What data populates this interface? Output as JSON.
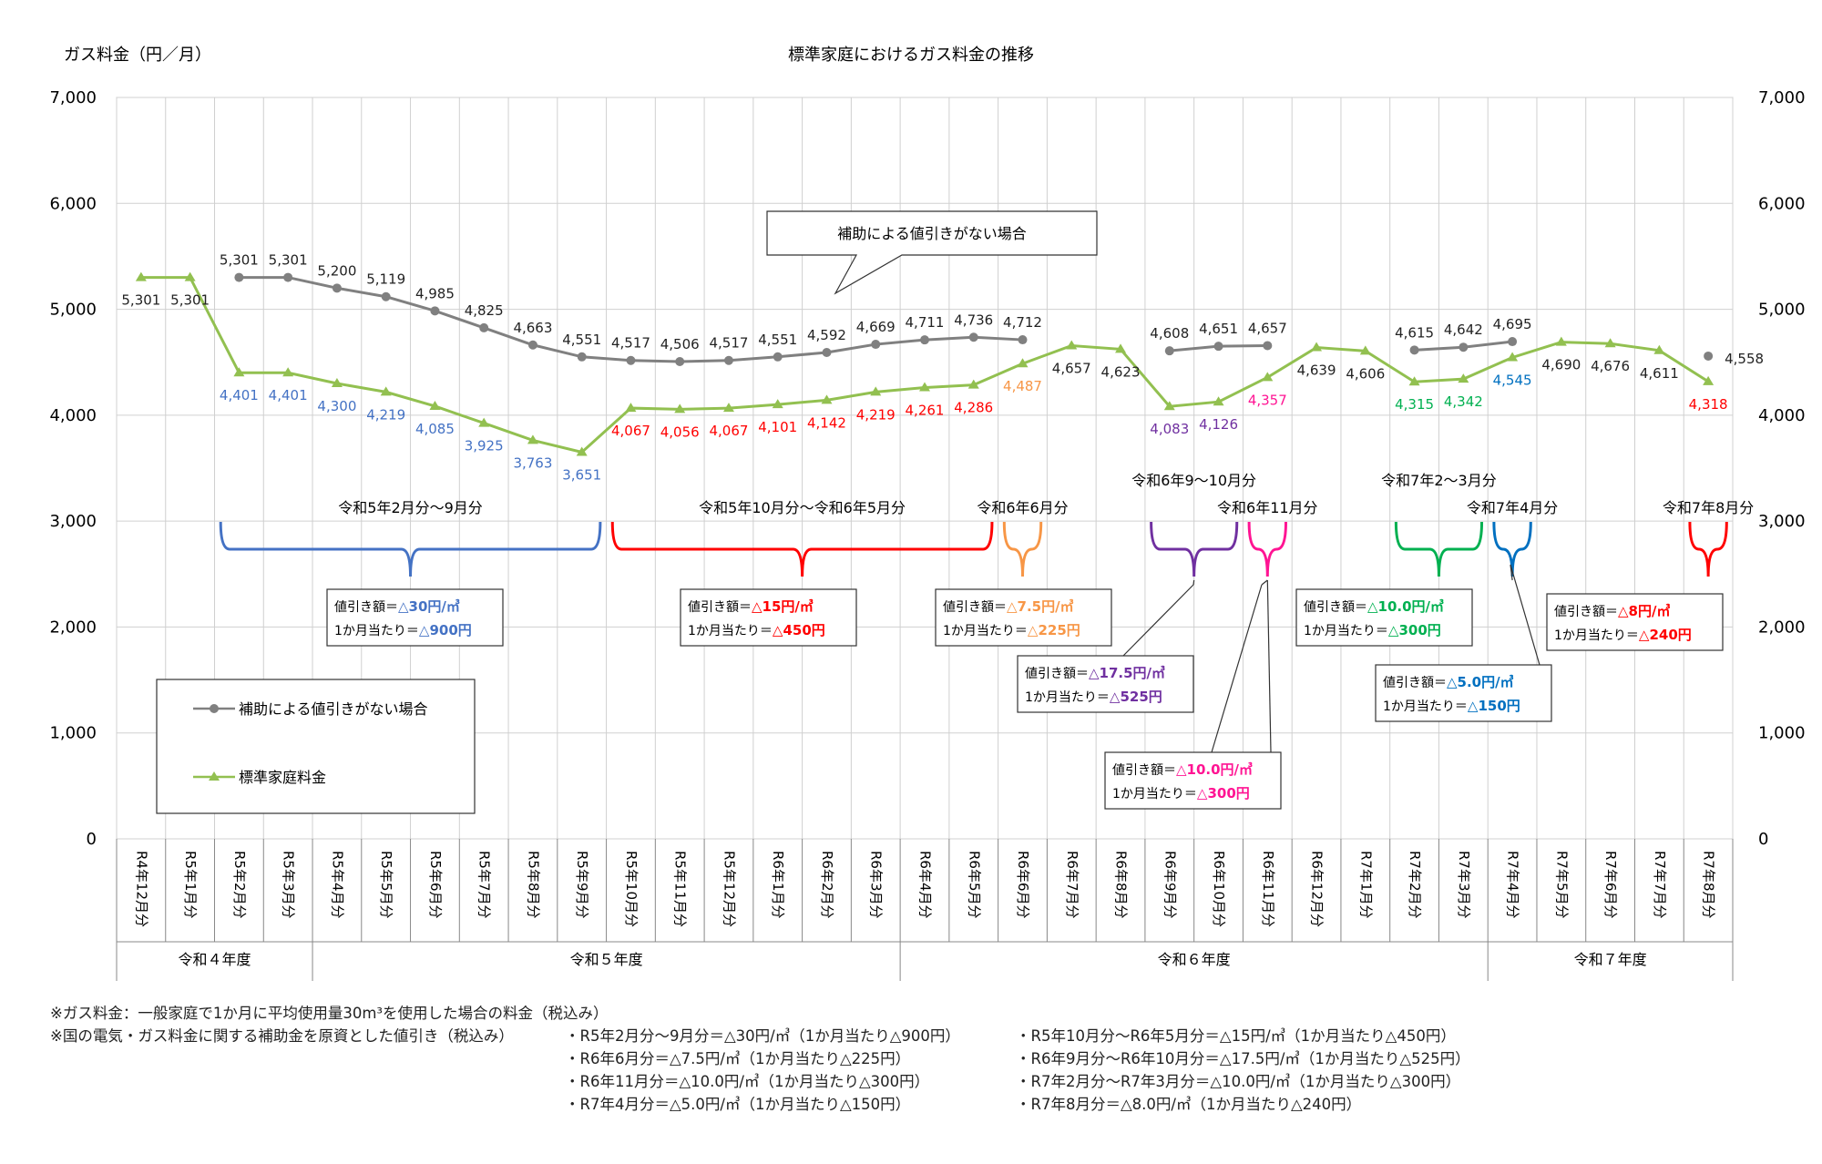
{
  "chart_data": {
    "type": "line",
    "title": "標準家庭におけるガス料金の推移",
    "ylabel": "ガス料金（円／月）",
    "ylim": [
      0,
      7000
    ],
    "yticks": [
      "0",
      "1,000",
      "2,000",
      "3,000",
      "4,000",
      "5,000",
      "6,000",
      "7,000"
    ],
    "grid": true,
    "categories": [
      "R4年12月分",
      "R5年1月分",
      "R5年2月分",
      "R5年3月分",
      "R5年4月分",
      "R5年5月分",
      "R5年6月分",
      "R5年7月分",
      "R5年8月分",
      "R5年9月分",
      "R5年10月分",
      "R5年11月分",
      "R5年12月分",
      "R6年1月分",
      "R6年2月分",
      "R6年3月分",
      "R6年4月分",
      "R6年5月分",
      "R6年6月分",
      "R6年7月分",
      "R6年8月分",
      "R6年9月分",
      "R6年10月分",
      "R6年11月分",
      "R6年12月分",
      "R7年1月分",
      "R7年2月分",
      "R7年3月分",
      "R7年4月分",
      "R7年5月分",
      "R7年6月分",
      "R7年7月分",
      "R7年8月分"
    ],
    "fiscal_years": [
      {
        "label": "令和４年度",
        "start": 0,
        "end": 3
      },
      {
        "label": "令和５年度",
        "start": 4,
        "end": 15
      },
      {
        "label": "令和６年度",
        "start": 16,
        "end": 27
      },
      {
        "label": "令和７年度",
        "start": 28,
        "end": 32
      }
    ],
    "series": [
      {
        "name": "補助による値引きがない場合",
        "color": "#808080",
        "values": [
          null,
          null,
          5301,
          5301,
          5200,
          5119,
          4985,
          4825,
          4663,
          4551,
          4517,
          4506,
          4517,
          4551,
          4592,
          4669,
          4711,
          4736,
          4712,
          null,
          null,
          4608,
          4651,
          4657,
          null,
          null,
          4615,
          4642,
          4695,
          null,
          null,
          null,
          4558
        ],
        "labels": [
          null,
          null,
          "5,301",
          "5,301",
          "5,200",
          "5,119",
          "4,985",
          "4,825",
          "4,663",
          "4,551",
          "4,517",
          "4,506",
          "4,517",
          "4,551",
          "4,592",
          "4,669",
          "4,711",
          "4,736",
          "4,712",
          null,
          null,
          "4,608",
          "4,651",
          "4,657",
          null,
          null,
          "4,615",
          "4,642",
          "4,695",
          null,
          null,
          null,
          "4,558"
        ]
      },
      {
        "name": "標準家庭料金",
        "color": "#92c050",
        "values": [
          5301,
          5301,
          4401,
          4401,
          4300,
          4219,
          4085,
          3925,
          3763,
          3651,
          4067,
          4056,
          4067,
          4101,
          4142,
          4219,
          4261,
          4286,
          4487,
          4657,
          4623,
          4083,
          4126,
          4357,
          4639,
          4606,
          4315,
          4342,
          4545,
          4690,
          4676,
          4611,
          4318
        ],
        "labels": [
          "5,301",
          "5,301",
          "4,401",
          "4,401",
          "4,300",
          "4,219",
          "4,085",
          "3,925",
          "3,763",
          "3,651",
          "4,067",
          "4,056",
          "4,067",
          "4,101",
          "4,142",
          "4,219",
          "4,261",
          "4,286",
          "4,487",
          "4,657",
          "4,623",
          "4,083",
          "4,126",
          "4,357",
          "4,639",
          "4,606",
          "4,315",
          "4,342",
          "4,545",
          "4,690",
          "4,676",
          "4,611",
          "4,318"
        ]
      }
    ],
    "periods": [
      {
        "label": "令和5年2月分～9月分",
        "from": 2,
        "to": 9,
        "color": "#4472c4",
        "box_line1_prefix": "値引き額＝",
        "box_line1_value": "△30円/㎥",
        "box_line2_prefix": "1か月当たり＝",
        "box_line2_value": "△900円"
      },
      {
        "label": "令和5年10月分～令和6年5月分",
        "from": 10,
        "to": 17,
        "color": "#ff0000",
        "box_line1_prefix": "値引き額＝",
        "box_line1_value": "△15円/㎥",
        "box_line2_prefix": "1か月当たり＝",
        "box_line2_value": "△450円"
      },
      {
        "label": "令和6年6月分",
        "from": 18,
        "to": 18,
        "color": "#f79646",
        "box_line1_prefix": "値引き額＝",
        "box_line1_value": "△7.5円/㎥",
        "box_line2_prefix": "1か月当たり＝",
        "box_line2_value": "△225円"
      },
      {
        "label": "令和6年9～10月分",
        "from": 21,
        "to": 22,
        "color": "#7030a0",
        "box_line1_prefix": "値引き額＝",
        "box_line1_value": "△17.5円/㎥",
        "box_line2_prefix": "1か月当たり＝",
        "box_line2_value": "△525円"
      },
      {
        "label": "令和6年11月分",
        "from": 23,
        "to": 23,
        "color": "#ff1493",
        "box_line1_prefix": "値引き額＝",
        "box_line1_value": "△10.0円/㎥",
        "box_line2_prefix": "1か月当たり＝",
        "box_line2_value": "△300円"
      },
      {
        "label": "令和7年2～3月分",
        "from": 26,
        "to": 27,
        "color": "#00b050",
        "box_line1_prefix": "値引き額＝",
        "box_line1_value": "△10.0円/㎥",
        "box_line2_prefix": "1か月当たり＝",
        "box_line2_value": "△300円"
      },
      {
        "label": "令和7年4月分",
        "from": 28,
        "to": 28,
        "color": "#0070c0",
        "box_line1_prefix": "値引き額＝",
        "box_line1_value": "△5.0円/㎥",
        "box_line2_prefix": "1か月当たり＝",
        "box_line2_value": "△150円"
      },
      {
        "label": "令和7年8月分",
        "from": 32,
        "to": 32,
        "color": "#ff0000",
        "box_line1_prefix": "値引き額＝",
        "box_line1_value": "△8円/㎥",
        "box_line2_prefix": "1か月当たり＝",
        "box_line2_value": "△240円"
      }
    ],
    "callout": "補助による値引きがない場合",
    "legend_position": "bottom-left"
  },
  "notes": {
    "line1": "※ガス料金：一般家庭で1か月に平均使用量30m³を使用した場合の料金（税込み）",
    "line2": "※国の電気・ガス料金に関する補助金を原資とした値引き（税込み）",
    "items": [
      "・R5年2月分～9月分＝△30円/㎥（1か月当たり△900円）",
      "・R5年10月分～R6年5月分＝△15円/㎥（1か月当たり△450円）",
      "・R6年6月分＝△7.5円/㎥（1か月当たり△225円）",
      "・R6年9月分～R6年10月分＝△17.5円/㎥（1か月当たり△525円）",
      "・R6年11月分＝△10.0円/㎥（1か月当たり△300円）",
      "・R7年2月分～R7年3月分＝△10.0円/㎥（1か月当たり△300円）",
      "・R7年4月分＝△5.0円/㎥（1か月当たり△150円）",
      "・R7年8月分＝△8.0円/㎥（1か月当たり△240円）"
    ]
  }
}
